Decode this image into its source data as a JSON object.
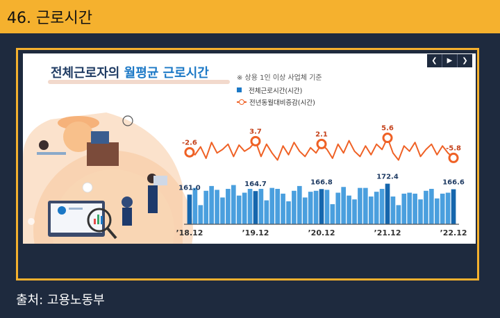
{
  "page": {
    "slide_title": "46. 근로시간",
    "source": "출처: 고용노동부"
  },
  "infographic": {
    "headline_prefix": "전체근로자의 ",
    "headline_highlight": "월평균 근로시간",
    "note": "※ 상용 1인 이상 사업체 기준",
    "nav": {
      "prev": "❮",
      "play": "▶",
      "next": "❯"
    }
  },
  "chart_data": {
    "type": "bar+line",
    "categories": [
      "’18.12",
      "",
      "",
      "",
      "",
      "",
      "",
      "",
      "",
      "",
      "",
      "",
      "’19.12",
      "",
      "",
      "",
      "",
      "",
      "",
      "",
      "",
      "",
      "",
      "",
      "’20.12",
      "",
      "",
      "",
      "",
      "",
      "",
      "",
      "",
      "",
      "",
      "",
      "’21.12",
      "",
      "",
      "",
      "",
      "",
      "",
      "",
      "",
      "",
      "",
      "",
      "’22.12"
    ],
    "x_tick_labels": [
      "’18.12",
      "’19.12",
      "’20.12",
      "’21.12",
      "’22.12"
    ],
    "series": [
      {
        "name": "전체근로시간(시간)",
        "type": "bar",
        "color": "#4a9fde",
        "highlight_color": "#1566ad",
        "values": [
          161.0,
          168,
          150,
          165,
          170,
          166,
          158,
          167,
          171,
          160,
          163,
          167,
          164.7,
          167,
          155,
          168,
          167,
          162,
          154,
          165,
          170,
          158,
          164,
          165,
          166.8,
          166,
          151,
          163,
          169,
          160,
          156,
          168,
          168,
          159,
          164,
          167,
          172.4,
          159,
          150,
          162,
          163,
          162,
          156,
          165,
          167,
          157,
          162,
          163,
          166.6
        ],
        "labeled": {
          "0": "161.0",
          "12": "164.7",
          "24": "166.8",
          "36": "172.4",
          "48": "166.6"
        }
      },
      {
        "name": "전년동월대비증감(시간)",
        "type": "line",
        "color": "#ef6125",
        "values": [
          -2.6,
          -4,
          0.5,
          -6,
          3,
          -3,
          -1,
          2,
          -5,
          1.5,
          -2,
          0,
          3.7,
          -5,
          2,
          -3,
          -7,
          1,
          -4,
          3,
          -2,
          -5,
          0,
          -3,
          2.1,
          -1,
          -6,
          2,
          -3,
          4,
          -2,
          -5,
          1,
          -4,
          2,
          -1,
          5.6,
          -3,
          -7,
          1,
          -2,
          3,
          -5,
          -1,
          2,
          -4,
          1,
          -3,
          -5.8
        ],
        "labeled": {
          "0": "-2.6",
          "12": "3.7",
          "24": "2.1",
          "36": "5.6",
          "48": "-5.8"
        }
      }
    ]
  }
}
